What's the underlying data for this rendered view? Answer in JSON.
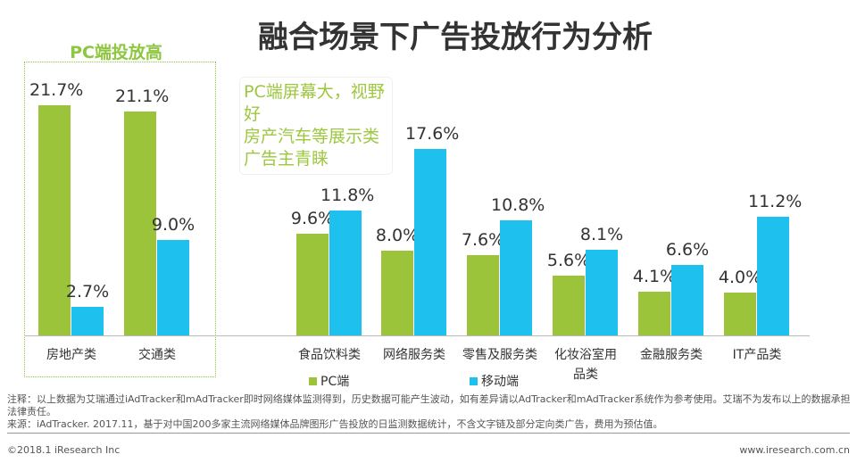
{
  "title": "融合场景下广告投放行为分析",
  "pc_box_title": "PC端投放高",
  "note": "PC端屏幕大，视野好\n房产汽车等展示类广告主青睐",
  "chart_data": {
    "type": "bar",
    "categories": [
      "房地产类",
      "交通类",
      "食品饮料类",
      "网络服务类",
      "零售及服务类",
      "化妆浴室用品类",
      "金融服务类",
      "IT产品类"
    ],
    "series": [
      {
        "name": "PC端",
        "color": "#9bc43a",
        "values": [
          21.7,
          21.1,
          9.6,
          8.0,
          7.6,
          5.6,
          4.1,
          4.0
        ]
      },
      {
        "name": "移动端",
        "color": "#1ec0ee",
        "values": [
          2.7,
          9.0,
          11.8,
          17.6,
          10.8,
          8.1,
          6.6,
          11.2
        ]
      }
    ],
    "value_labels": [
      [
        "21.7%",
        "21.1%",
        "9.6%",
        "8.0%",
        "7.6%",
        "5.6%",
        "4.1%",
        "4.0%"
      ],
      [
        "2.7%",
        "9.0%",
        "11.8%",
        "17.6%",
        "10.8%",
        "8.1%",
        "6.6%",
        "11.2%"
      ]
    ],
    "legend": "bottom",
    "ylim": [
      0,
      22
    ]
  },
  "footnote": {
    "note": "注释：以上数据为艾瑞通过iAdTracker和mAdTracker即时网络媒体监测得到，历史数据可能产生波动，如有差异请以AdTracker和mAdTracker系统作为参考使用。艾瑞不为发布以上的数据承担法律责任。",
    "source": "来源：iAdTracker. 2017.11，基于对中国200多家主流网络媒体品牌图形广告投放的日监测数据统计，不含文字链及部分定向类广告，费用为预估值。",
    "copyright": "©2018.1 iResearch Inc",
    "website": "www.iresearch.com.cn"
  }
}
